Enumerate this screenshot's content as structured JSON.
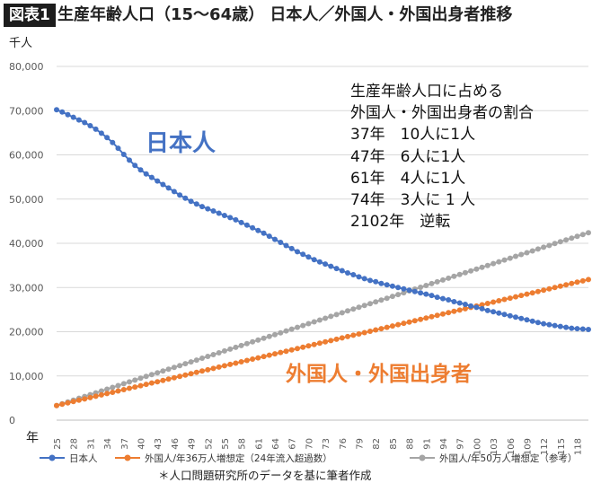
{
  "figure": {
    "badge": "図表1",
    "title": "生産年齢人口（15〜64歳） 日本人／外国人・外国出身者推移",
    "footnote": "＊人口問題研究所のデータを基に筆者作成"
  },
  "annotation": {
    "lines": [
      "生産年齢人口に占める",
      "外国人・外国出身者の割合",
      "37年　10人に1人",
      "47年　6人に1人",
      "61年　4人に1人",
      "74年　3人に 1 人",
      "2102年　逆転"
    ]
  },
  "colors": {
    "japanese": "#4472c4",
    "foreign36": "#ed7d31",
    "foreign50": "#a5a5a5",
    "grid": "#d9d9d9",
    "axis_text": "#595959"
  },
  "chart_data": {
    "type": "line",
    "title": "生産年齢人口（15〜64歳） 日本人／外国人・外国出身者推移",
    "y_unit_label": "千人",
    "x_unit_label": "年",
    "x_range": [
      25,
      120
    ],
    "x_tick_labels": [
      "25",
      "28",
      "31",
      "34",
      "37",
      "40",
      "43",
      "46",
      "49",
      "52",
      "55",
      "58",
      "61",
      "64",
      "67",
      "70",
      "73",
      "76",
      "79",
      "82",
      "85",
      "88",
      "91",
      "94",
      "97",
      "100",
      "103",
      "106",
      "109",
      "112",
      "115",
      "118"
    ],
    "ylim": [
      0,
      80000
    ],
    "y_tick_labels": [
      "0",
      "10,000",
      "20,000",
      "30,000",
      "40,000",
      "50,000",
      "60,000",
      "70,000",
      "80,000"
    ],
    "grid": true,
    "legend_placement": "bottom",
    "inline_labels": {
      "japanese": "日本人",
      "foreign": "外国人・外国出身者"
    },
    "series": [
      {
        "name": "日本人",
        "color_key": "japanese",
        "points": [
          [
            25,
            70200
          ],
          [
            26,
            69700
          ],
          [
            27,
            69100
          ],
          [
            28,
            68500
          ],
          [
            29,
            67900
          ],
          [
            30,
            67300
          ],
          [
            31,
            66600
          ],
          [
            32,
            65800
          ],
          [
            33,
            64900
          ],
          [
            34,
            63900
          ],
          [
            35,
            62800
          ],
          [
            36,
            61500
          ],
          [
            37,
            60100
          ],
          [
            38,
            58800
          ],
          [
            39,
            57600
          ],
          [
            40,
            56600
          ],
          [
            41,
            55700
          ],
          [
            42,
            54900
          ],
          [
            43,
            54100
          ],
          [
            44,
            53300
          ],
          [
            45,
            52500
          ],
          [
            46,
            51700
          ],
          [
            47,
            50900
          ],
          [
            48,
            50200
          ],
          [
            49,
            49500
          ],
          [
            50,
            48900
          ],
          [
            51,
            48300
          ],
          [
            52,
            47800
          ],
          [
            53,
            47300
          ],
          [
            54,
            46800
          ],
          [
            55,
            46300
          ],
          [
            56,
            45800
          ],
          [
            57,
            45300
          ],
          [
            58,
            44700
          ],
          [
            59,
            44100
          ],
          [
            60,
            43500
          ],
          [
            61,
            42900
          ],
          [
            62,
            42300
          ],
          [
            63,
            41600
          ],
          [
            64,
            40900
          ],
          [
            65,
            40200
          ],
          [
            66,
            39500
          ],
          [
            67,
            38800
          ],
          [
            68,
            38100
          ],
          [
            69,
            37500
          ],
          [
            70,
            36900
          ],
          [
            71,
            36300
          ],
          [
            72,
            35800
          ],
          [
            73,
            35300
          ],
          [
            74,
            34800
          ],
          [
            75,
            34300
          ],
          [
            76,
            33800
          ],
          [
            77,
            33300
          ],
          [
            78,
            32900
          ],
          [
            79,
            32400
          ],
          [
            80,
            32000
          ],
          [
            81,
            31600
          ],
          [
            82,
            31300
          ],
          [
            83,
            30900
          ],
          [
            84,
            30600
          ],
          [
            85,
            30300
          ],
          [
            86,
            30000
          ],
          [
            87,
            29700
          ],
          [
            88,
            29400
          ],
          [
            89,
            29100
          ],
          [
            90,
            28800
          ],
          [
            91,
            28500
          ],
          [
            92,
            28200
          ],
          [
            93,
            27800
          ],
          [
            94,
            27500
          ],
          [
            95,
            27200
          ],
          [
            96,
            26800
          ],
          [
            97,
            26500
          ],
          [
            98,
            26200
          ],
          [
            99,
            25800
          ],
          [
            100,
            25500
          ],
          [
            101,
            25200
          ],
          [
            102,
            24800
          ],
          [
            103,
            24500
          ],
          [
            104,
            24200
          ],
          [
            105,
            23900
          ],
          [
            106,
            23600
          ],
          [
            107,
            23300
          ],
          [
            108,
            23000
          ],
          [
            109,
            22700
          ],
          [
            110,
            22400
          ],
          [
            111,
            22100
          ],
          [
            112,
            21800
          ],
          [
            113,
            21600
          ],
          [
            114,
            21400
          ],
          [
            115,
            21200
          ],
          [
            116,
            21000
          ],
          [
            117,
            20800
          ],
          [
            118,
            20700
          ],
          [
            119,
            20600
          ],
          [
            120,
            20500
          ]
        ]
      },
      {
        "name": "外国人/年36万人増想定（24年流入超過数）",
        "color_key": "foreign36",
        "x_start": 25,
        "x_end": 120,
        "y_start": 3300,
        "y_end": 31800
      },
      {
        "name": "外国人/年50万人増想定（参考）",
        "color_key": "foreign50",
        "x_start": 25,
        "x_end": 120,
        "y_start": 3300,
        "y_end": 42400
      }
    ]
  }
}
